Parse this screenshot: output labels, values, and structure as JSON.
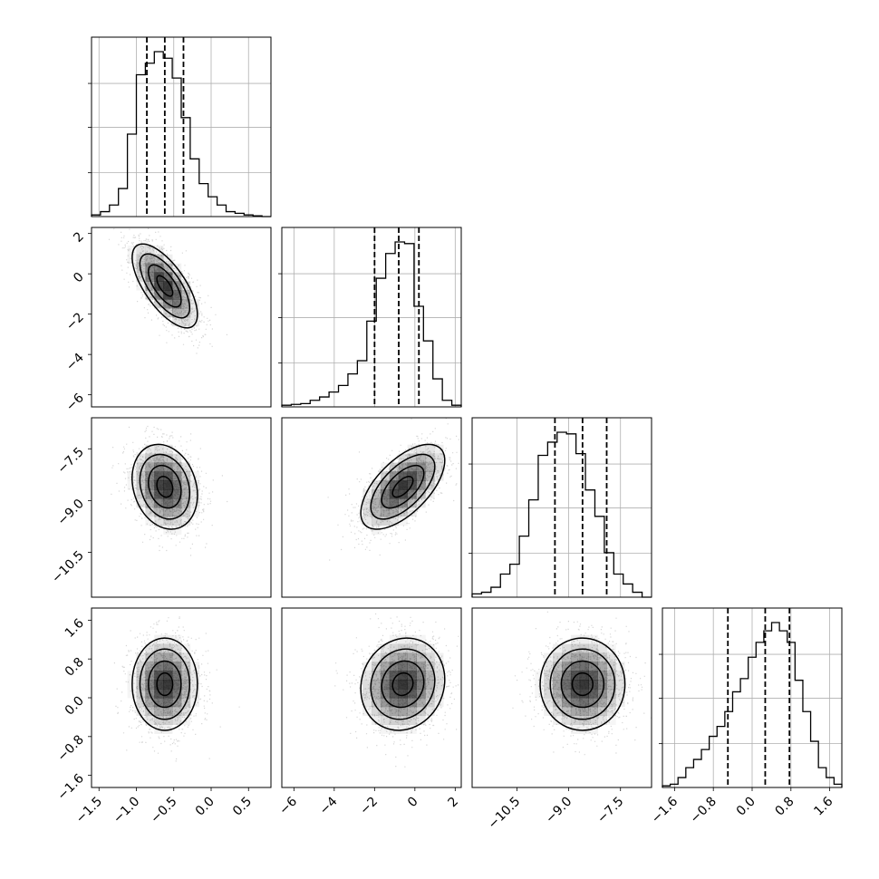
{
  "chart_data": {
    "type": "corner",
    "title": "",
    "grid": true,
    "colors": {
      "line": "#000000",
      "grid": "#b0b0b0",
      "points": "#000000",
      "density": "#000000"
    },
    "params": [
      {
        "range": [
          -1.6,
          0.8
        ],
        "ticks": [
          -1.5,
          -1.0,
          -0.5,
          0.0,
          0.5
        ],
        "tick_labels": [
          "−1.5",
          "−1.0",
          "−0.5",
          "0.0",
          "0.5"
        ],
        "mean": -0.62,
        "sd": 0.22,
        "quantiles": [
          -0.86,
          -0.62,
          -0.37
        ],
        "hist": [
          0.01,
          0.03,
          0.07,
          0.17,
          0.5,
          0.86,
          0.93,
          1.0,
          0.96,
          0.84,
          0.6,
          0.35,
          0.2,
          0.12,
          0.07,
          0.03,
          0.02,
          0.01,
          0.005,
          0.0
        ]
      },
      {
        "range": [
          -6.6,
          2.3
        ],
        "ticks": [
          -6,
          -4,
          -2,
          0,
          2
        ],
        "tick_labels": [
          "−6",
          "−4",
          "−2",
          "0",
          "2"
        ],
        "mean": -0.6,
        "sd": 1.05,
        "quantiles": [
          -2.0,
          -0.8,
          0.2
        ],
        "hist": [
          0.01,
          0.015,
          0.02,
          0.04,
          0.06,
          0.09,
          0.13,
          0.2,
          0.28,
          0.52,
          0.78,
          0.93,
          1.0,
          0.99,
          0.61,
          0.4,
          0.17,
          0.04,
          0.01
        ]
      },
      {
        "range": [
          -11.8,
          -6.6
        ],
        "ticks": [
          -10.5,
          -9.0,
          -7.5
        ],
        "tick_labels": [
          "−10.5",
          "−9.0",
          "−7.5"
        ],
        "mean": -8.6,
        "sd": 0.62,
        "quantiles": [
          -9.4,
          -8.6,
          -7.9
        ],
        "hist": [
          0.02,
          0.03,
          0.06,
          0.14,
          0.2,
          0.37,
          0.59,
          0.86,
          0.94,
          1.0,
          0.99,
          0.87,
          0.65,
          0.49,
          0.27,
          0.14,
          0.08,
          0.03,
          0.0
        ]
      },
      {
        "range": [
          -1.85,
          1.85
        ],
        "ticks": [
          -1.6,
          -0.8,
          0.0,
          0.8,
          1.6
        ],
        "tick_labels": [
          "−1.6",
          "−0.8",
          "0.0",
          "0.8",
          "1.6"
        ],
        "mean": 0.28,
        "sd": 0.48,
        "quantiles": [
          -0.5,
          0.27,
          0.77
        ],
        "hist": [
          0.01,
          0.02,
          0.06,
          0.12,
          0.17,
          0.23,
          0.31,
          0.37,
          0.46,
          0.58,
          0.66,
          0.79,
          0.88,
          0.95,
          1.0,
          0.95,
          0.88,
          0.65,
          0.46,
          0.28,
          0.12,
          0.06,
          0.02
        ]
      }
    ],
    "correlations": [
      [
        0,
        1,
        -0.68
      ],
      [
        0,
        2,
        -0.2
      ],
      [
        1,
        2,
        0.62
      ],
      [
        0,
        3,
        0.0
      ],
      [
        1,
        3,
        0.1
      ],
      [
        2,
        3,
        0.0
      ]
    ]
  }
}
